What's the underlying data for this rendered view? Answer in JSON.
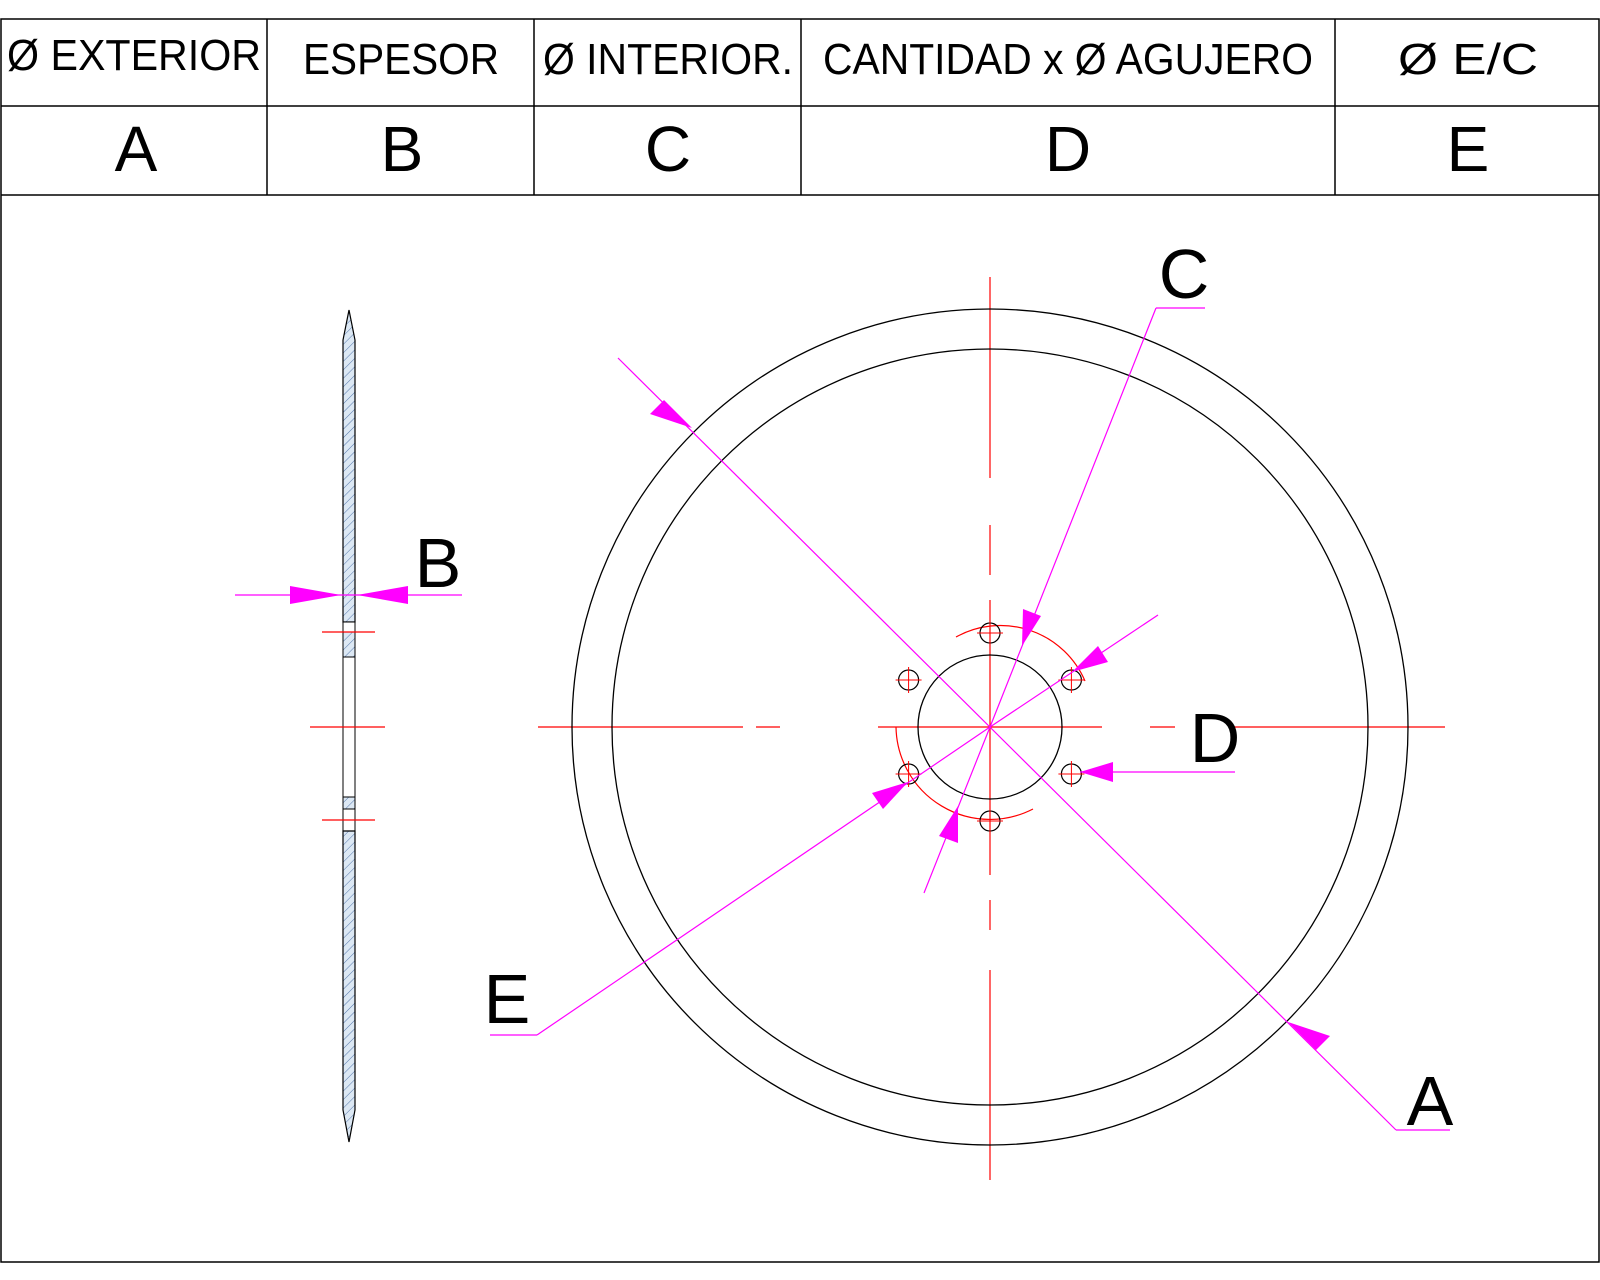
{
  "table": {
    "headers": [
      "Ø EXTERIOR",
      "ESPESOR",
      "Ø INTERIOR.",
      "CANTIDAD x Ø AGUJERO",
      "Ø E/C"
    ],
    "codes": [
      "A",
      "B",
      "C",
      "D",
      "E"
    ]
  },
  "drawing": {
    "callouts": {
      "a": "A",
      "b": "B",
      "c": "C",
      "d": "D",
      "e": "E"
    },
    "bolt_hole_count": 6
  },
  "colors": {
    "outline": "#000000",
    "centerline": "#ff0000",
    "dimension": "#ff00ff",
    "hatch_fill": "#dce8f4",
    "hatch_line": "#5577aa"
  }
}
